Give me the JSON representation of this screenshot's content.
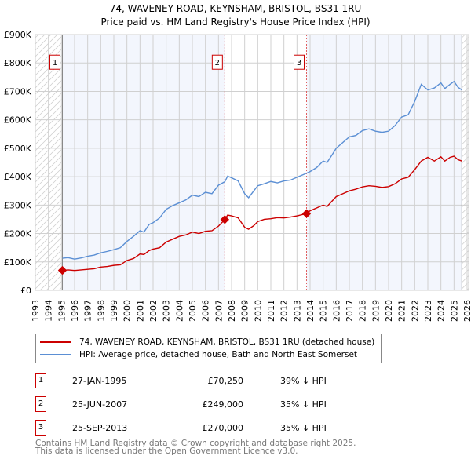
{
  "chart_data": {
    "type": "line",
    "title": "74, WAVENEY ROAD, KEYNSHAM, BRISTOL, BS31 1RU",
    "subtitle": "Price paid vs. HM Land Registry's House Price Index (HPI)",
    "xlim": [
      1993,
      2026
    ],
    "ylim": [
      0,
      900000
    ],
    "x_ticks": [
      "1993",
      "1994",
      "1995",
      "1996",
      "1997",
      "1998",
      "1999",
      "2000",
      "2001",
      "2002",
      "2003",
      "2004",
      "2005",
      "2006",
      "2007",
      "2008",
      "2009",
      "2010",
      "2011",
      "2012",
      "2013",
      "2014",
      "2015",
      "2016",
      "2017",
      "2018",
      "2019",
      "2020",
      "2021",
      "2022",
      "2023",
      "2024",
      "2025",
      "2026"
    ],
    "y_ticks": [
      {
        "v": 0,
        "label": "£0"
      },
      {
        "v": 100000,
        "label": "£100K"
      },
      {
        "v": 200000,
        "label": "£200K"
      },
      {
        "v": 300000,
        "label": "£300K"
      },
      {
        "v": 400000,
        "label": "£400K"
      },
      {
        "v": 500000,
        "label": "£500K"
      },
      {
        "v": 600000,
        "label": "£600K"
      },
      {
        "v": 700000,
        "label": "£700K"
      },
      {
        "v": 800000,
        "label": "£800K"
      },
      {
        "v": 900000,
        "label": "£900K"
      }
    ],
    "grid": true,
    "series": [
      {
        "name": "74, WAVENEY ROAD, KEYNSHAM, BRISTOL, BS31 1RU (detached house)",
        "color": "#cc0000",
        "x": [
          1995.07,
          1995.5,
          1996,
          1996.5,
          1997,
          1997.5,
          1998,
          1998.5,
          1999,
          1999.5,
          2000,
          2000.5,
          2001,
          2001.3,
          2001.7,
          2002,
          2002.5,
          2003,
          2003.5,
          2004,
          2004.5,
          2005,
          2005.5,
          2006,
          2006.5,
          2007,
          2007.48,
          2007.7,
          2008,
          2008.5,
          2009,
          2009.3,
          2009.7,
          2010,
          2010.5,
          2011,
          2011.5,
          2012,
          2012.5,
          2013,
          2013.73,
          2014,
          2014.5,
          2015,
          2015.3,
          2015.7,
          2016,
          2016.5,
          2017,
          2017.5,
          2018,
          2018.5,
          2019,
          2019.5,
          2020,
          2020.5,
          2021,
          2021.5,
          2022,
          2022.5,
          2023,
          2023.5,
          2024,
          2024.3,
          2024.7,
          2025,
          2025.3,
          2025.6
        ],
        "y": [
          70250,
          72000,
          70000,
          72000,
          74000,
          76000,
          82000,
          84000,
          88000,
          90000,
          105000,
          112000,
          128000,
          126000,
          140000,
          145000,
          150000,
          170000,
          180000,
          190000,
          195000,
          205000,
          200000,
          208000,
          210000,
          226000,
          249000,
          265000,
          262000,
          255000,
          222000,
          215000,
          228000,
          242000,
          250000,
          252000,
          256000,
          255000,
          258000,
          262000,
          270000,
          280000,
          290000,
          300000,
          295000,
          315000,
          330000,
          340000,
          350000,
          356000,
          364000,
          368000,
          366000,
          362000,
          365000,
          375000,
          392000,
          398000,
          425000,
          455000,
          468000,
          455000,
          470000,
          455000,
          468000,
          472000,
          460000,
          455000
        ]
      },
      {
        "name": "HPI: Average price, detached house, Bath and North East Somerset",
        "color": "#5b8fd4",
        "x": [
          1995.07,
          1995.5,
          1996,
          1996.5,
          1997,
          1997.5,
          1998,
          1998.5,
          1999,
          1999.5,
          2000,
          2000.5,
          2001,
          2001.3,
          2001.7,
          2002,
          2002.5,
          2003,
          2003.5,
          2004,
          2004.5,
          2005,
          2005.5,
          2006,
          2006.5,
          2007,
          2007.48,
          2007.7,
          2008,
          2008.5,
          2009,
          2009.3,
          2009.7,
          2010,
          2010.5,
          2011,
          2011.5,
          2012,
          2012.5,
          2013,
          2013.73,
          2014,
          2014.5,
          2015,
          2015.3,
          2015.7,
          2016,
          2016.5,
          2017,
          2017.5,
          2018,
          2018.5,
          2019,
          2019.5,
          2020,
          2020.5,
          2021,
          2021.5,
          2022,
          2022.5,
          2023,
          2023.5,
          2024,
          2024.3,
          2024.7,
          2025,
          2025.3,
          2025.6
        ],
        "y": [
          113000,
          115000,
          110000,
          114000,
          120000,
          124000,
          132000,
          137000,
          143000,
          150000,
          172000,
          190000,
          210000,
          205000,
          232000,
          238000,
          255000,
          285000,
          298000,
          308000,
          318000,
          335000,
          330000,
          345000,
          340000,
          370000,
          382000,
          402000,
          396000,
          385000,
          340000,
          326000,
          350000,
          368000,
          375000,
          383000,
          378000,
          385000,
          388000,
          398000,
          412000,
          418000,
          432000,
          455000,
          450000,
          478000,
          500000,
          520000,
          540000,
          545000,
          562000,
          568000,
          560000,
          556000,
          560000,
          580000,
          610000,
          618000,
          665000,
          725000,
          705000,
          712000,
          730000,
          710000,
          725000,
          735000,
          715000,
          705000
        ]
      }
    ],
    "sales": [
      {
        "id": "1",
        "x": 1995.07,
        "y": 70250
      },
      {
        "id": "2",
        "x": 2007.48,
        "y": 249000
      },
      {
        "id": "3",
        "x": 2013.73,
        "y": 270000
      }
    ],
    "legend_placement": "below"
  },
  "title": "74, WAVENEY ROAD, KEYNSHAM, BRISTOL, BS31 1RU",
  "subtitle": "Price paid vs. HM Land Registry's House Price Index (HPI)",
  "legend": [
    "74, WAVENEY ROAD, KEYNSHAM, BRISTOL, BS31 1RU (detached house)",
    "HPI: Average price, detached house, Bath and North East Somerset"
  ],
  "table": [
    {
      "id": "1",
      "date": "27-JAN-1995",
      "price": "£70,250",
      "hpi": "39% ↓ HPI"
    },
    {
      "id": "2",
      "date": "25-JUN-2007",
      "price": "£249,000",
      "hpi": "35% ↓ HPI"
    },
    {
      "id": "3",
      "date": "25-SEP-2013",
      "price": "£270,000",
      "hpi": "35% ↓ HPI"
    }
  ],
  "footer": [
    "Contains HM Land Registry data © Crown copyright and database right 2025.",
    "This data is licensed under the Open Government Licence v3.0."
  ]
}
